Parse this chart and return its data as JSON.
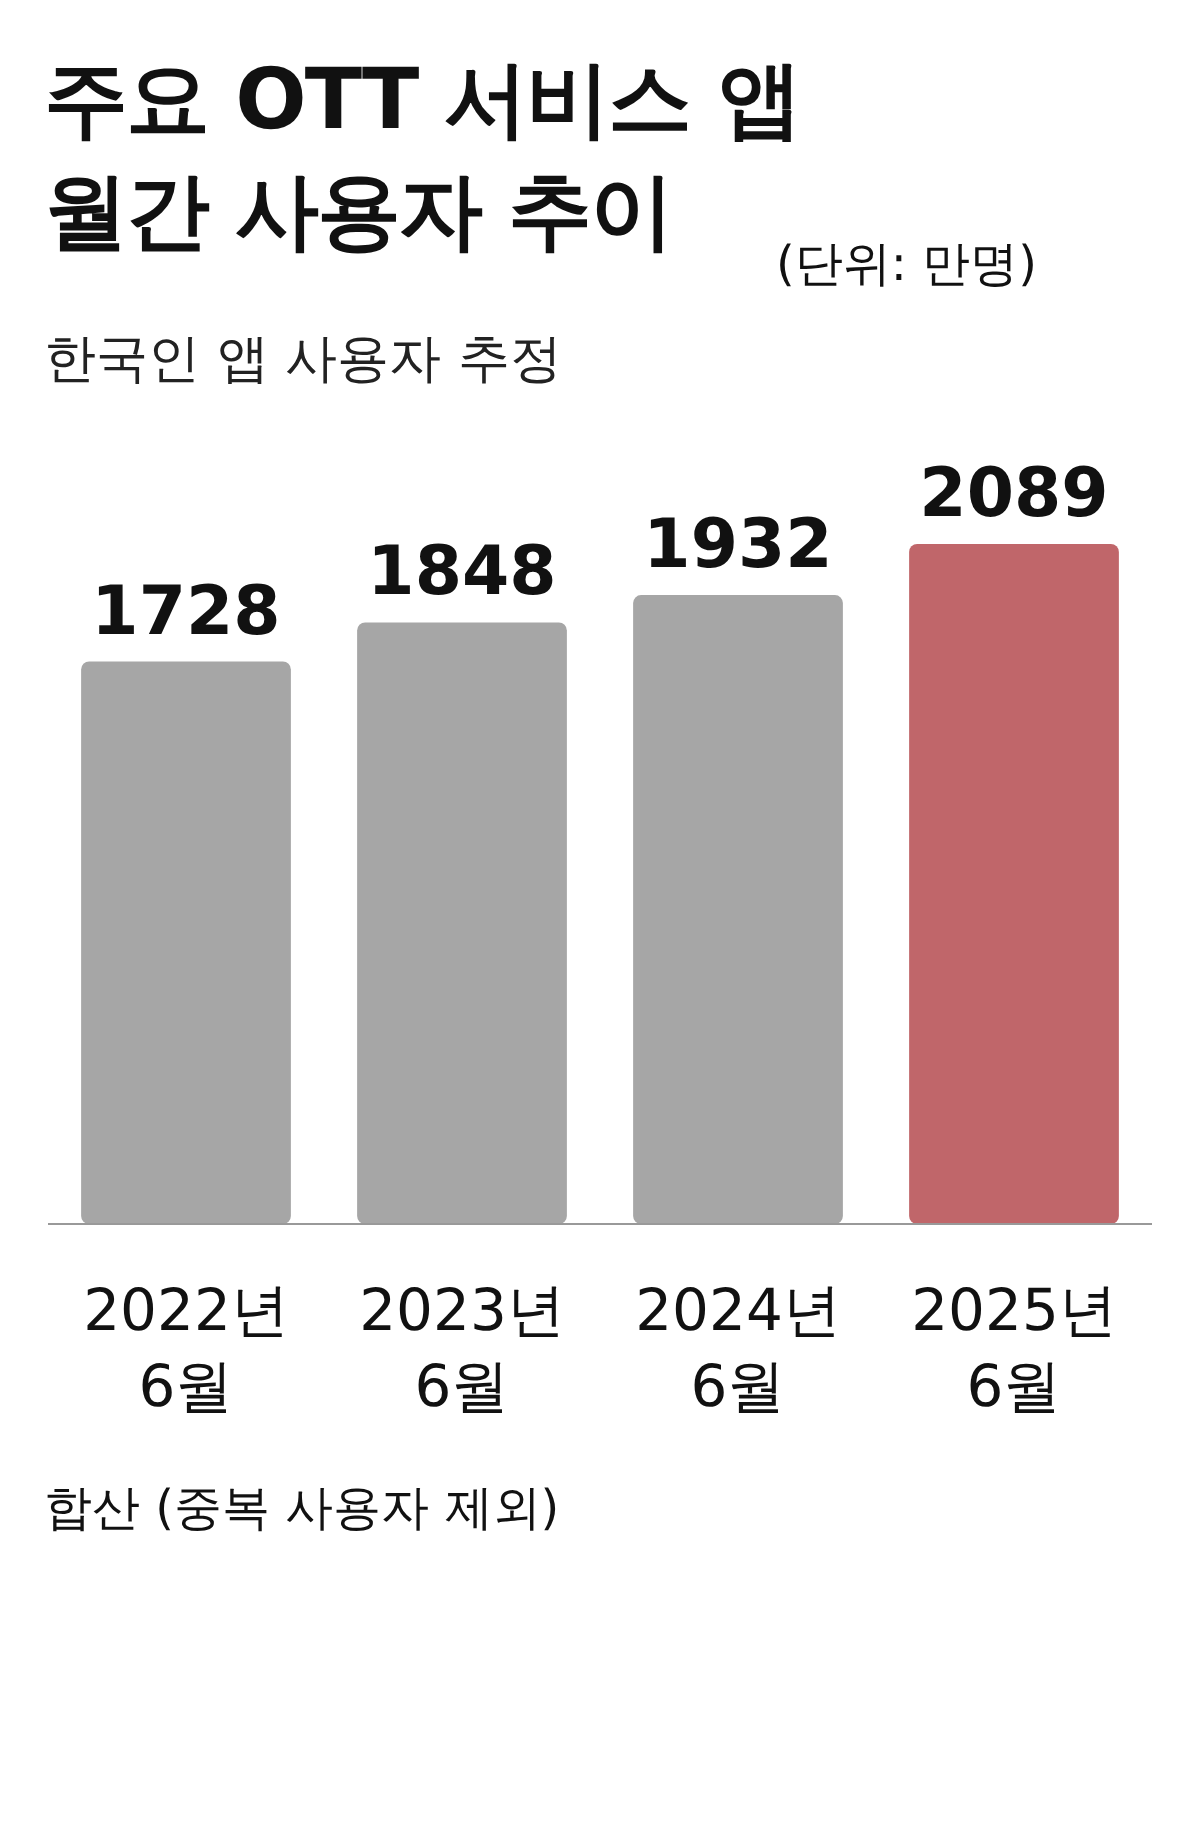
{
  "chart_data": {
    "type": "bar",
    "title": "주요 OTT 서비스 앱 월간 사용자 추이",
    "subtitle": "한국인 앱 사용자 추정",
    "categories": [
      "2022년 6월",
      "2023년 6월",
      "2024년 6월",
      "2025년 6월"
    ],
    "values": [
      1728,
      1848,
      1932,
      2089
    ],
    "colors": [
      "#a6a6a6",
      "#a6a6a6",
      "#a6a6a6",
      "#c0666a"
    ],
    "data_labels": true,
    "annotations": [
      "(단위: 만명)",
      "합산 (중복 사용자 제외)"
    ]
  }
}
